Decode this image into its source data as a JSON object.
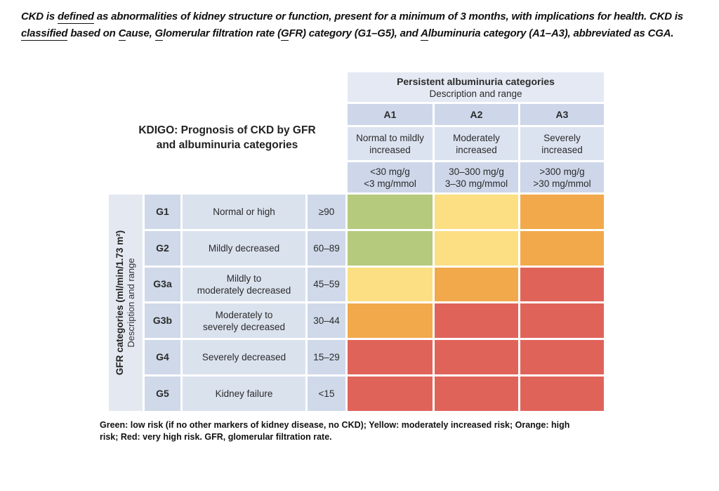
{
  "intro": {
    "l1a": "CKD is ",
    "l1b": "defined",
    "l1c": " as abnormalities of kidney structure or function, present for a minimum of 3 months, with implications for health. CKD is",
    "l2a": "classified",
    "l2b": " based on ",
    "l2c": "C",
    "l2d": "ause, ",
    "l2e": "G",
    "l2f": "lomerular filtration rate (",
    "l2g": "G",
    "l2h": "FR) category (G1–G5), and ",
    "l2i": "A",
    "l2j": "lbuminuria category (A1–A3), abbreviated as CGA."
  },
  "table": {
    "kdigo_title": "KDIGO: Prognosis of CKD by GFR\nand albuminuria categories",
    "albuminuria_header": {
      "title": "Persistent albuminuria categories",
      "subtitle": "Description and range"
    },
    "gfr_axis": {
      "title": "GFR categories (ml/min/1.73 m²)",
      "subtitle": "Description and range"
    },
    "columns": [
      {
        "id": "A1",
        "desc": "Normal to mildly\nincreased",
        "range": "<30 mg/g\n<3 mg/mmol"
      },
      {
        "id": "A2",
        "desc": "Moderately\nincreased",
        "range": "30–300 mg/g\n3–30 mg/mmol"
      },
      {
        "id": "A3",
        "desc": "Severely\nincreased",
        "range": ">300 mg/g\n>30 mg/mmol"
      }
    ],
    "rows": [
      {
        "id": "G1",
        "desc": "Normal or high",
        "range": "≥90",
        "risks": [
          "green",
          "yellow",
          "orange"
        ]
      },
      {
        "id": "G2",
        "desc": "Mildly decreased",
        "range": "60–89",
        "risks": [
          "green",
          "yellow",
          "orange"
        ]
      },
      {
        "id": "G3a",
        "desc": "Mildly to\nmoderately decreased",
        "range": "45–59",
        "risks": [
          "yellow",
          "orange",
          "red"
        ]
      },
      {
        "id": "G3b",
        "desc": "Moderately to\nseverely decreased",
        "range": "30–44",
        "risks": [
          "orange",
          "red",
          "red"
        ]
      },
      {
        "id": "G4",
        "desc": "Severely decreased",
        "range": "15–29",
        "risks": [
          "red",
          "red",
          "red"
        ]
      },
      {
        "id": "G5",
        "desc": "Kidney failure",
        "range": "<15",
        "risks": [
          "red",
          "red",
          "red"
        ]
      }
    ]
  },
  "colors": {
    "green": "#b5ca7d",
    "yellow": "#fcdf82",
    "orange": "#f1a94b",
    "red": "#e0635a",
    "header_light": "#e4e9f3",
    "header_mid": "#dce3f0",
    "header_dark": "#cdd7e9"
  },
  "footnote": {
    "text": "Green: low risk (if no other markers of kidney disease, no CKD); Yellow: moderately increased risk; Orange: high\nrisk; Red: very high risk. GFR, glomerular filtration rate."
  }
}
